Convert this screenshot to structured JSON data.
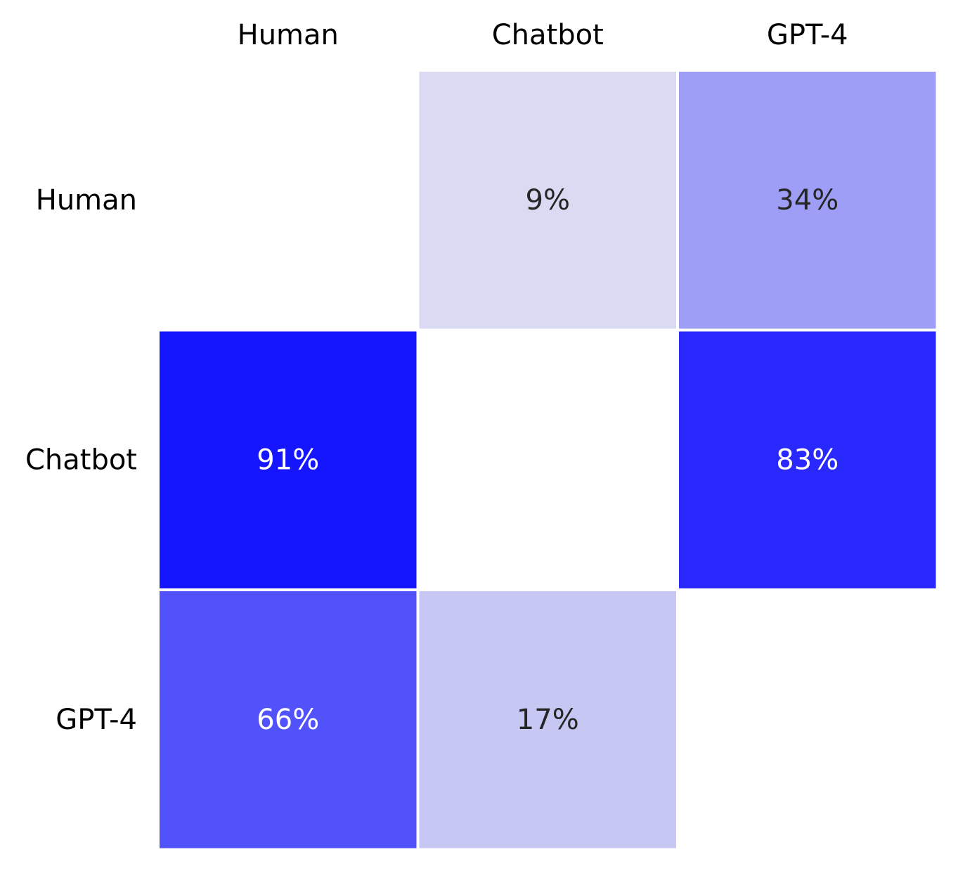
{
  "chart_data": {
    "type": "heatmap",
    "title": "",
    "xlabel": "",
    "ylabel": "",
    "x_categories": [
      "Human",
      "Chatbot",
      "GPT-4"
    ],
    "y_categories": [
      "Human",
      "Chatbot",
      "GPT-4"
    ],
    "x_tick_position": "top",
    "values": [
      [
        null,
        9,
        34
      ],
      [
        91,
        null,
        83
      ],
      [
        66,
        17,
        null
      ]
    ],
    "value_format": "{v}%",
    "vmin": 0,
    "vmax": 100,
    "colormap": {
      "low": "#f0f0f2",
      "high": "#0000ff"
    },
    "cell_border_color": "#ffffff",
    "text_color_dark": "#262626",
    "text_color_light": "#ffffff",
    "grid": false,
    "legend": "none"
  }
}
